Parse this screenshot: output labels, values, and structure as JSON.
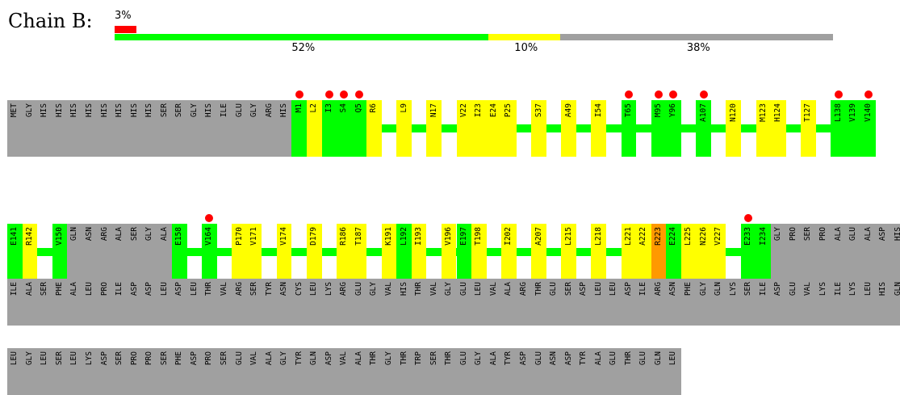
{
  "chain_label": "Chain B:",
  "summary_bar": {
    "top_label": "3%",
    "segments": [
      {
        "label": "52%",
        "fraction": 0.52,
        "color": "#00ff00"
      },
      {
        "label": "10%",
        "fraction": 0.1,
        "color": "#ffff00"
      },
      {
        "label": "38%",
        "fraction": 0.38,
        "color": "#a0a0a0"
      }
    ],
    "top_fraction": 0.03,
    "top_color": "#ff0000"
  },
  "colors": {
    "gray": "#a0a0a0",
    "green": "#00ff00",
    "yellow": "#ffff00",
    "orange": "#ff9900",
    "red": "#ff0000"
  },
  "rows": [
    {
      "cells": [
        {
          "w": 1,
          "c": "gray",
          "labels": [
            "MET",
            "GLY",
            "HIS",
            "HIS",
            "HIS",
            "HIS",
            "HIS",
            "HIS",
            "HIS",
            "HIS",
            "SER",
            "SER",
            "GLY",
            "HIS",
            "ILE",
            "GLU",
            "GLY",
            "ARG",
            "HIS"
          ]
        },
        {
          "gap": 0
        },
        {
          "w": 1,
          "c": "green",
          "labels": [
            "M1"
          ],
          "dots": [
            true
          ]
        },
        {
          "w": 1,
          "c": "yellow",
          "labels": [
            "L2"
          ]
        },
        {
          "w": 1,
          "c": "green",
          "labels": [
            "I3",
            "S4",
            "Q5"
          ],
          "dots": [
            true,
            true,
            true
          ]
        },
        {
          "w": 1,
          "c": "yellow",
          "labels": [
            "R6"
          ]
        },
        {
          "gap": 1
        },
        {
          "w": 1,
          "c": "yellow",
          "labels": [
            "L9"
          ]
        },
        {
          "gap": 1
        },
        {
          "w": 1,
          "c": "yellow",
          "labels": [
            "N17"
          ]
        },
        {
          "gap": 1
        },
        {
          "w": 1,
          "c": "yellow",
          "labels": [
            "V22",
            "I23",
            "E24",
            "P25"
          ]
        },
        {
          "gap": 1
        },
        {
          "w": 1,
          "c": "yellow",
          "labels": [
            "S37"
          ]
        },
        {
          "gap": 1
        },
        {
          "w": 1,
          "c": "yellow",
          "labels": [
            "A49"
          ]
        },
        {
          "gap": 1
        },
        {
          "w": 1,
          "c": "yellow",
          "labels": [
            "I54"
          ]
        },
        {
          "gap": 1
        },
        {
          "w": 1,
          "c": "green",
          "labels": [
            "T65"
          ],
          "dots": [
            true
          ]
        },
        {
          "gap": 1
        },
        {
          "w": 1,
          "c": "green",
          "labels": [
            "M95",
            "Y96"
          ],
          "dots": [
            true,
            true
          ]
        },
        {
          "gap": 1
        },
        {
          "w": 1,
          "c": "green",
          "labels": [
            "A107"
          ],
          "dots": [
            true
          ]
        },
        {
          "gap": 1
        },
        {
          "w": 1,
          "c": "yellow",
          "labels": [
            "N120"
          ]
        },
        {
          "gap": 1
        },
        {
          "w": 1,
          "c": "yellow",
          "labels": [
            "M123",
            "H124"
          ]
        },
        {
          "gap": 1
        },
        {
          "w": 1,
          "c": "yellow",
          "labels": [
            "T127"
          ]
        },
        {
          "gap": 1
        },
        {
          "w": 1,
          "c": "green",
          "labels": [
            "L138",
            "V139",
            "V140"
          ],
          "dots": [
            true,
            false,
            true
          ]
        }
      ]
    },
    {
      "cells": [
        {
          "w": 1,
          "c": "green",
          "labels": [
            "E141"
          ]
        },
        {
          "w": 1,
          "c": "yellow",
          "labels": [
            "R142"
          ]
        },
        {
          "gap": 1
        },
        {
          "w": 1,
          "c": "green",
          "labels": [
            "V150"
          ]
        },
        {
          "w": 1,
          "c": "gray",
          "labels": [
            "GLN",
            "ASN",
            "ARG",
            "ALA",
            "SER",
            "GLY",
            "ALA"
          ]
        },
        {
          "w": 1,
          "c": "green",
          "labels": [
            "E158"
          ]
        },
        {
          "gap": 1
        },
        {
          "w": 1,
          "c": "green",
          "labels": [
            "V164"
          ],
          "dots": [
            true
          ]
        },
        {
          "gap": 1
        },
        {
          "w": 1,
          "c": "yellow",
          "labels": [
            "P170",
            "V171"
          ]
        },
        {
          "gap": 1
        },
        {
          "w": 1,
          "c": "yellow",
          "labels": [
            "V174"
          ]
        },
        {
          "gap": 1
        },
        {
          "w": 1,
          "c": "yellow",
          "labels": [
            "D179"
          ]
        },
        {
          "gap": 1
        },
        {
          "w": 1,
          "c": "yellow",
          "labels": [
            "R186",
            "T187"
          ]
        },
        {
          "gap": 1
        },
        {
          "w": 1,
          "c": "yellow",
          "labels": [
            "K191"
          ]
        },
        {
          "w": 1,
          "c": "green",
          "labels": [
            "L192"
          ]
        },
        {
          "w": 1,
          "c": "yellow",
          "labels": [
            "I193"
          ]
        },
        {
          "gap": 1
        },
        {
          "w": 1,
          "c": "yellow",
          "labels": [
            "V196"
          ]
        },
        {
          "w": 1,
          "c": "green",
          "labels": [
            "E197"
          ]
        },
        {
          "w": 1,
          "c": "yellow",
          "labels": [
            "T198"
          ]
        },
        {
          "gap": 1
        },
        {
          "w": 1,
          "c": "yellow",
          "labels": [
            "I202"
          ]
        },
        {
          "gap": 1
        },
        {
          "w": 1,
          "c": "yellow",
          "labels": [
            "A207"
          ]
        },
        {
          "gap": 1
        },
        {
          "w": 1,
          "c": "yellow",
          "labels": [
            "L215"
          ]
        },
        {
          "gap": 1
        },
        {
          "w": 1,
          "c": "yellow",
          "labels": [
            "L218"
          ]
        },
        {
          "gap": 1
        },
        {
          "w": 1,
          "c": "yellow",
          "labels": [
            "L221",
            "A222"
          ]
        },
        {
          "w": 1,
          "c": "orange",
          "labels": [
            "R223"
          ]
        },
        {
          "w": 1,
          "c": "green",
          "labels": [
            "E224"
          ]
        },
        {
          "w": 1,
          "c": "yellow",
          "labels": [
            "L225",
            "N226",
            "V227"
          ]
        },
        {
          "gap": 1
        },
        {
          "w": 1,
          "c": "green",
          "labels": [
            "E233",
            "I234"
          ],
          "dots": [
            true,
            false
          ]
        },
        {
          "w": 1,
          "c": "gray",
          "labels": [
            "GLY",
            "PRO",
            "SER",
            "PRO",
            "ALA",
            "GLU",
            "ALA",
            "ASP",
            "HIS"
          ]
        }
      ]
    },
    {
      "cells": [
        {
          "w": 1,
          "c": "gray",
          "labels": [
            "ILE",
            "ALA",
            "SER",
            "PHE",
            "ALA",
            "LEU",
            "PRO",
            "ILE",
            "ASP",
            "ASP",
            "LEU",
            "ASP",
            "LEU",
            "THR",
            "VAL",
            "ARG",
            "SER",
            "TYR",
            "ASN",
            "CYS",
            "LEU",
            "LYS",
            "ARG",
            "GLU",
            "GLY",
            "VAL",
            "HIS",
            "THR",
            "VAL",
            "GLY",
            "GLU",
            "LEU",
            "VAL",
            "ALA",
            "ARG",
            "THR",
            "GLU",
            "SER",
            "ASP",
            "LEU",
            "LEU",
            "ASP",
            "ILE",
            "ARG",
            "ASN",
            "PHE",
            "GLY",
            "GLN",
            "LYS",
            "SER",
            "ILE",
            "ASP",
            "GLU",
            "VAL",
            "LYS",
            "ILE",
            "LYS",
            "LEU",
            "HIS",
            "GLN"
          ]
        }
      ]
    },
    {
      "cells": [
        {
          "w": 1,
          "c": "gray",
          "labels": [
            "LEU",
            "GLY",
            "LEU",
            "SER",
            "LEU",
            "LYS",
            "ASP",
            "SER",
            "PRO",
            "PRO",
            "SER",
            "PHE",
            "ASP",
            "PRO",
            "SER",
            "GLU",
            "VAL",
            "ALA",
            "GLY",
            "TYR",
            "GLN",
            "ASP",
            "VAL",
            "ALA",
            "THR",
            "GLY",
            "THR",
            "TRP",
            "SER",
            "THR",
            "GLU",
            "GLY",
            "ALA",
            "TYR",
            "ASP",
            "GLU",
            "ASN",
            "ASP",
            "TYR",
            "ALA",
            "GLU",
            "THR",
            "GLU",
            "GLN",
            "LEU"
          ]
        }
      ]
    }
  ]
}
